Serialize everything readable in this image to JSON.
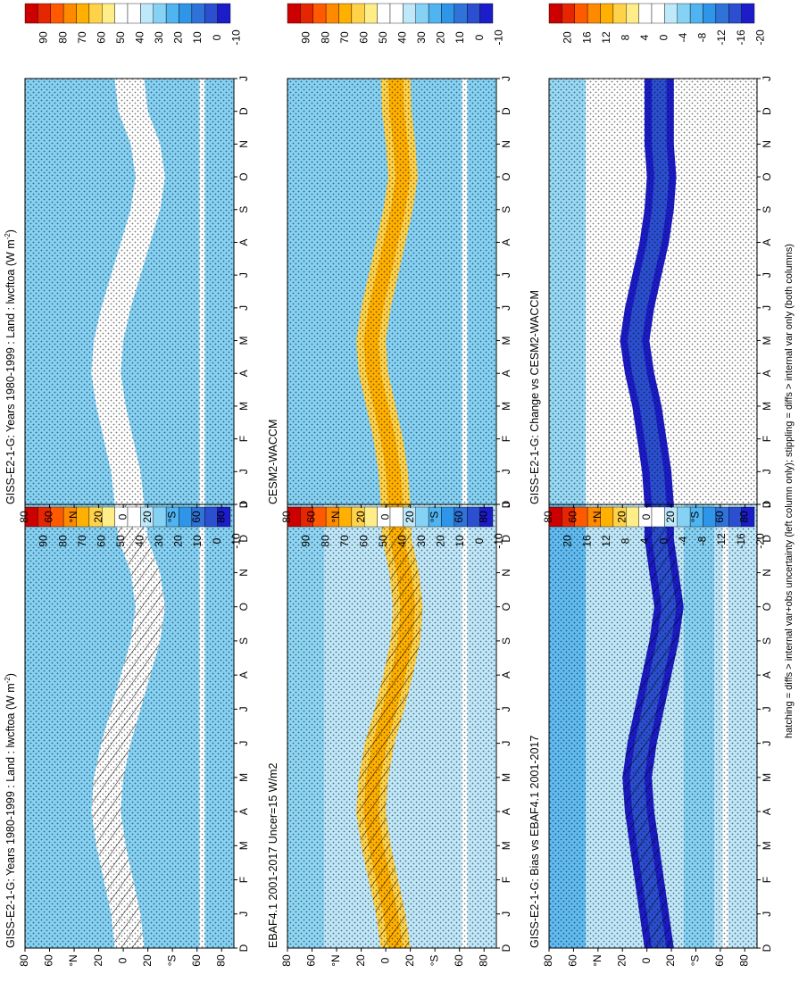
{
  "chart_data": [
    {
      "type": "heatmap",
      "panel": "top-left",
      "title": "GISS-E2-1-G: Years 1980-1999 : Land : lwcftoa (W m-2)",
      "title_main": "GISS-E2-1-G: Years 1980-1999 : Land : lwcftoa (W m",
      "title_sup": "-2",
      "x_months": [
        "D",
        "J",
        "F",
        "M",
        "A",
        "M",
        "J",
        "J",
        "A",
        "S",
        "O",
        "N",
        "D",
        "J"
      ],
      "y_ticks": [
        "80",
        "60",
        "°N",
        "20",
        "0",
        "20",
        "°S",
        "60",
        "80"
      ],
      "colorbar": [
        "90",
        "80",
        "70",
        "60",
        "50",
        "40",
        "30",
        "20",
        "10",
        "0",
        "-10"
      ],
      "hatching": true,
      "stippling": true,
      "band_center_lat": [
        -5,
        -2,
        4,
        10,
        14,
        12,
        6,
        -2,
        -10,
        -18,
        -22,
        -18,
        -8,
        -5
      ],
      "band_value": 40,
      "background_value": 25,
      "south_value": 20
    },
    {
      "type": "heatmap",
      "panel": "top-right",
      "title": "GISS-E2-1-G: Years 1980-1999 : Land : lwcftoa (W m-2)",
      "title_main": "GISS-E2-1-G: Years 1980-1999 : Land : lwcftoa (W m",
      "title_sup": "-2",
      "x_months": [
        "D",
        "J",
        "F",
        "M",
        "A",
        "M",
        "J",
        "J",
        "A",
        "S",
        "O",
        "N",
        "D",
        "J"
      ],
      "y_ticks": [
        "80",
        "60",
        "°N",
        "20",
        "0",
        "20",
        "°S",
        "60",
        "80"
      ],
      "colorbar": [
        "90",
        "80",
        "70",
        "60",
        "50",
        "40",
        "30",
        "20",
        "10",
        "0",
        "-10"
      ],
      "hatching": false,
      "stippling": true,
      "band_center_lat": [
        -5,
        -2,
        4,
        10,
        14,
        12,
        6,
        -2,
        -10,
        -18,
        -22,
        -18,
        -8,
        -5
      ],
      "band_value": 38,
      "background_value": 25,
      "south_value": 20
    },
    {
      "type": "heatmap",
      "panel": "middle-left",
      "title": "EBAF4.1 2001-2017 Uncer=15 W/m2",
      "title_main": "EBAF4.1 2001-2017 Uncer=15 W/m2",
      "title_sup": "",
      "x_months": [
        "D",
        "J",
        "F",
        "M",
        "A",
        "M",
        "J",
        "J",
        "A",
        "S",
        "O",
        "N",
        "D",
        "J"
      ],
      "y_ticks": [
        "80",
        "60",
        "°N",
        "20",
        "0",
        "20",
        "°S",
        "60",
        "80"
      ],
      "colorbar": [
        "90",
        "80",
        "70",
        "60",
        "50",
        "40",
        "30",
        "20",
        "10",
        "0",
        "-10"
      ],
      "hatching": true,
      "stippling": true,
      "band_center_lat": [
        -8,
        -4,
        2,
        8,
        12,
        10,
        5,
        -3,
        -10,
        -16,
        -18,
        -15,
        -9,
        -8
      ],
      "band_value": 55,
      "background_value": 28,
      "south_value": 30
    },
    {
      "type": "heatmap",
      "panel": "middle-right",
      "title": "CESM2-WACCM",
      "title_main": "CESM2-WACCM",
      "title_sup": "",
      "x_months": [
        "D",
        "J",
        "F",
        "M",
        "A",
        "M",
        "J",
        "J",
        "A",
        "S",
        "O",
        "N",
        "D",
        "J"
      ],
      "y_ticks": [
        "80",
        "60",
        "°N",
        "20",
        "0",
        "20",
        "°S",
        "60",
        "80"
      ],
      "colorbar": [
        "90",
        "80",
        "70",
        "60",
        "50",
        "40",
        "30",
        "20",
        "10",
        "0",
        "-10"
      ],
      "hatching": false,
      "stippling": true,
      "band_center_lat": [
        -8,
        -6,
        -2,
        4,
        10,
        12,
        8,
        2,
        -4,
        -10,
        -14,
        -12,
        -9,
        -8
      ],
      "band_value": 58,
      "background_value": 25,
      "south_value": 22
    },
    {
      "type": "heatmap",
      "panel": "bottom-left",
      "title": "GISS-E2-1-G: Bias vs EBAF4.1 2001-2017",
      "title_main": "GISS-E2-1-G: Bias vs EBAF4.1 2001-2017",
      "title_sup": "",
      "x_months": [
        "D",
        "J",
        "F",
        "M",
        "A",
        "M",
        "J",
        "J",
        "A",
        "S",
        "O",
        "N",
        "D",
        "J"
      ],
      "y_ticks": [
        "80",
        "60",
        "°N",
        "20",
        "0",
        "20",
        "°S",
        "60",
        "80"
      ],
      "colorbar": [
        "20",
        "16",
        "12",
        "8",
        "4",
        "0",
        "-4",
        "-8",
        "-12",
        "-16",
        "-20"
      ],
      "hatching": true,
      "stippling": true,
      "band_center_lat": [
        -10,
        -6,
        -2,
        2,
        6,
        8,
        4,
        -2,
        -8,
        -14,
        -18,
        -14,
        -10,
        -10
      ],
      "band_value": -18,
      "background_value": -3,
      "south_value": -6
    },
    {
      "type": "heatmap",
      "panel": "bottom-right",
      "title": "GISS-E2-1-G: Change vs CESM2-WACCM",
      "title_main": "GISS-E2-1-G: Change vs CESM2-WACCM",
      "title_sup": "",
      "x_months": [
        "D",
        "J",
        "F",
        "M",
        "A",
        "M",
        "J",
        "J",
        "A",
        "S",
        "O",
        "N",
        "D",
        "J"
      ],
      "y_ticks": [
        "80",
        "60",
        "°N",
        "20",
        "0",
        "20",
        "°S",
        "60",
        "80"
      ],
      "colorbar": [
        "20",
        "16",
        "12",
        "8",
        "4",
        "0",
        "-4",
        "-8",
        "-12",
        "-16",
        "-20"
      ],
      "hatching": false,
      "stippling": true,
      "band_center_lat": [
        -10,
        -8,
        -4,
        0,
        6,
        10,
        6,
        0,
        -6,
        -10,
        -12,
        -10,
        -10,
        -10
      ],
      "band_value": -19,
      "background_value": -2,
      "south_value": 2
    }
  ],
  "colors": {
    "levels": [
      "#cc0000",
      "#e62600",
      "#ff5a00",
      "#ff8a00",
      "#ffb000",
      "#ffd24a",
      "#ffee88",
      "#ffffff",
      "#ffffff",
      "#bfe8fa",
      "#85d2f5",
      "#4fb4f0",
      "#2f95e8",
      "#2f72d8",
      "#2b4fd0",
      "#1c1cc8"
    ]
  },
  "footer": "hatching = diffs > internal var+obs uncertainty (left column only); stippling = diffs > internal var only (both columns)"
}
